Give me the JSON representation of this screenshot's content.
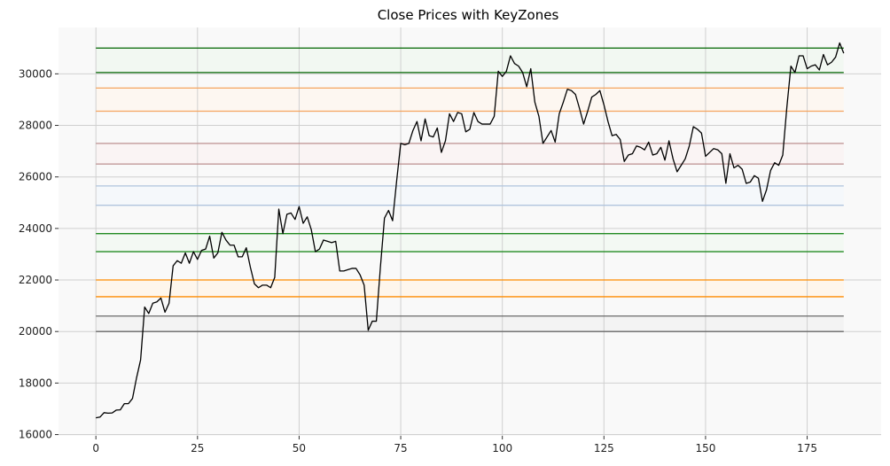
{
  "chart_data": {
    "type": "line",
    "title": "Close Prices with KeyZones",
    "xlabel": "",
    "ylabel": "",
    "xlim": [
      -9.2,
      193.2
    ],
    "ylim": [
      15950,
      31800
    ],
    "grid": true,
    "x_ticks": [
      0,
      25,
      50,
      75,
      100,
      125,
      150,
      175
    ],
    "x_tick_labels": [
      "0",
      "25",
      "50",
      "75",
      "100",
      "125",
      "150",
      "175"
    ],
    "y_ticks": [
      16000,
      18000,
      20000,
      22000,
      24000,
      26000,
      28000,
      30000
    ],
    "y_tick_labels": [
      "16000",
      "18000",
      "20000",
      "22000",
      "24000",
      "26000",
      "28000",
      "30000"
    ],
    "colors": {
      "background": "#f9f9f9",
      "grid": "#d0d0d0",
      "price_line": "#000000"
    },
    "series": [
      {
        "values": [
          16650,
          16680,
          16850,
          16830,
          16840,
          16950,
          16960,
          17200,
          17200,
          17400,
          18200,
          18900,
          20950,
          20700,
          21100,
          21150,
          21300,
          20750,
          21100,
          22550,
          22750,
          22650,
          23050,
          22650,
          23100,
          22800,
          23150,
          23200,
          23700,
          22850,
          23050,
          23850,
          23550,
          23350,
          23350,
          22900,
          22900,
          23250,
          22500,
          21850,
          21700,
          21800,
          21800,
          21700,
          22100,
          24750,
          23800,
          24550,
          24600,
          24350,
          24850,
          24200,
          24450,
          23950,
          23100,
          23200,
          23550,
          23500,
          23450,
          23500,
          22350,
          22350,
          22400,
          22450,
          22450,
          22200,
          21800,
          20050,
          20400,
          20400,
          22500,
          24400,
          24700,
          24300,
          25850,
          27300,
          27250,
          27300,
          27800,
          28150,
          27400,
          28250,
          27600,
          27550,
          27900,
          26950,
          27400,
          28450,
          28150,
          28500,
          28450,
          27750,
          27850,
          28500,
          28150,
          28050,
          28050,
          28050,
          28350,
          30100,
          29900,
          30100,
          30700,
          30400,
          30300,
          30050,
          29500,
          30200,
          28900,
          28350,
          27300,
          27550,
          27800,
          27350,
          28450,
          28900,
          29400,
          29350,
          29200,
          28650,
          28050,
          28550,
          29100,
          29200,
          29350,
          28800,
          28150,
          27600,
          27650,
          27450,
          26600,
          26850,
          26900,
          27200,
          27150,
          27050,
          27350,
          26850,
          26900,
          27150,
          26650,
          27400,
          26700,
          26200,
          26450,
          26700,
          27200,
          27950,
          27850,
          27700,
          26800,
          26950,
          27100,
          27050,
          26900,
          25750,
          26900,
          26350,
          26450,
          26300,
          25750,
          25800,
          26050,
          25950,
          25050,
          25500,
          26250,
          26550,
          26450,
          26850,
          28700,
          30300,
          30050,
          30700,
          30700,
          30200,
          30300,
          30350,
          30150,
          30750,
          30350,
          30450,
          30650,
          31200,
          30800
        ]
      }
    ],
    "keyzones": [
      {
        "value": 31000,
        "color": "#006400",
        "fill": "#ffffff"
      },
      {
        "value": 30050,
        "color": "#006400",
        "fill": "#f9f9f9"
      },
      {
        "value": 29450,
        "color": "#f4a460",
        "fill": "#fcf7f2"
      },
      {
        "value": 28550,
        "color": "#f4a460",
        "fill": "#f9f9f9"
      },
      {
        "value": 27300,
        "color": "#bc8f8f",
        "fill": "#faf5f5"
      },
      {
        "value": 26500,
        "color": "#bc8f8f",
        "fill": "#f9f9f9"
      },
      {
        "value": 25650,
        "color": "#b0c4de",
        "fill": "#f6f8fa"
      },
      {
        "value": 24900,
        "color": "#b0c4de",
        "fill": "#f9f9f9"
      },
      {
        "value": 23800,
        "color": "#228b22",
        "fill": "#f5faf5"
      },
      {
        "value": 23100,
        "color": "#228b22",
        "fill": "#f9f9f9"
      },
      {
        "value": 22000,
        "color": "#ff8c00",
        "fill": "#fdf6ec"
      },
      {
        "value": 21350,
        "color": "#ff8c00",
        "fill": "#f9f9f9"
      },
      {
        "value": 20600,
        "color": "#696969",
        "fill": "#f4f4f4"
      },
      {
        "value": 20000,
        "color": "#696969",
        "fill": "#f9f9f9"
      }
    ],
    "zones": [
      {
        "low": 30050,
        "high": 31000,
        "fill": "#f2f8f2"
      },
      {
        "low": 28550,
        "high": 29450,
        "fill": "#fdf7f1"
      },
      {
        "low": 26500,
        "high": 27300,
        "fill": "#faf4f4"
      },
      {
        "low": 24900,
        "high": 25650,
        "fill": "#f5f8fb"
      },
      {
        "low": 23100,
        "high": 23800,
        "fill": "#f3f9f3"
      },
      {
        "low": 21350,
        "high": 22000,
        "fill": "#fef6ec"
      },
      {
        "low": 20000,
        "high": 20600,
        "fill": "#f3f3f3"
      }
    ]
  }
}
